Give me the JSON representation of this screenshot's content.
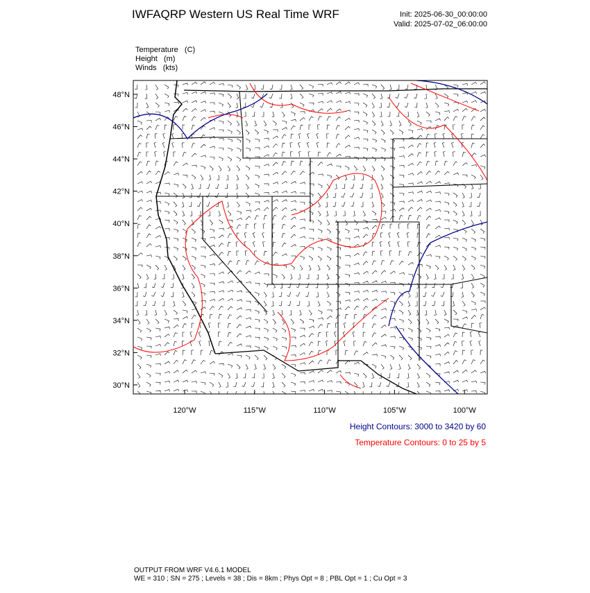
{
  "header": {
    "title": "IWFAQRP Western US Real Time WRF",
    "init": "Init: 2025-06-30_00:00:00",
    "valid": "Valid: 2025-07-02_06:00:00"
  },
  "fields": [
    "Temperature   (C)",
    "Height   (m)",
    "Winds   (kts)"
  ],
  "map": {
    "lat_labels": [
      "48°N",
      "46°N",
      "44°N",
      "42°N",
      "40°N",
      "38°N",
      "36°N",
      "34°N",
      "32°N",
      "30°N"
    ],
    "lon_labels": [
      "120°W",
      "115°W",
      "110°W",
      "105°W",
      "100°W"
    ]
  },
  "legend": [
    {
      "text": "Height Contours: 3000 to 3420 by 60",
      "color": "#00008b"
    },
    {
      "text": "Temperature Contours: 0 to 25 by 5",
      "color": "#ff0000"
    }
  ],
  "footer": [
    "OUTPUT FROM WRF V4.6.1 MODEL",
    "WE = 310 ; SN = 275 ; Levels = 38 ; Dis = 8km ; Phys Opt = 8 ; PBL Opt = 1 ; Cu Opt = 3"
  ]
}
